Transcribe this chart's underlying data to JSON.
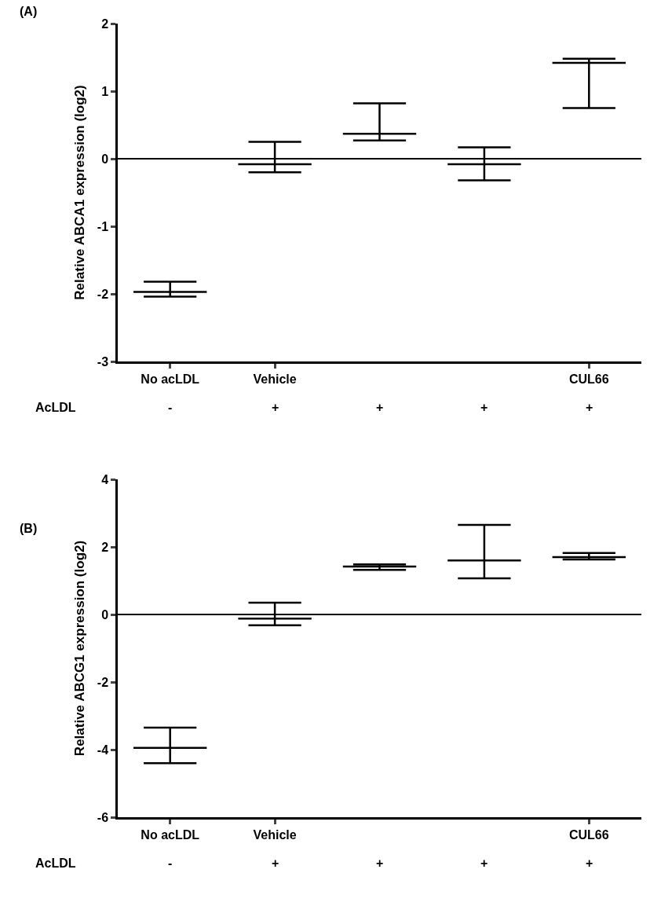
{
  "chart_data": [
    {
      "type": "box",
      "title": "(A)",
      "ylabel": "Relative ABCA1 expression (log2)",
      "categories": [
        "No acLDL",
        "Vehicle",
        null,
        null,
        "CUL66"
      ],
      "series": [
        {
          "color": "#000000",
          "boxes": [
            {
              "low": -2.04,
              "q1": -1.97,
              "median": -1.97,
              "q3": -1.97,
              "high": -1.82
            },
            {
              "low": -0.2,
              "q1": -0.08,
              "median": -0.08,
              "q3": -0.08,
              "high": 0.25
            },
            {
              "low": 0.27,
              "q1": 0.37,
              "median": 0.37,
              "q3": 0.37,
              "high": 0.82
            },
            {
              "low": -0.32,
              "q1": -0.08,
              "median": -0.08,
              "q3": -0.08,
              "high": 0.17
            },
            {
              "low": 0.75,
              "q1": 1.42,
              "median": 1.42,
              "q3": 1.42,
              "high": 1.48
            }
          ]
        }
      ],
      "ylim": [
        -3,
        2
      ],
      "yticks": [
        -3,
        -2,
        -1,
        0,
        1,
        2
      ],
      "ref_lines": [
        {
          "axis": "y",
          "value": 0,
          "color": "#000000"
        }
      ],
      "annotations": [
        "AcLDL",
        "-",
        "+",
        "+",
        "+",
        "+"
      ],
      "grid": false
    },
    {
      "type": "box",
      "title": "(B)",
      "ylabel": "Relative ABCG1 expression (log2)",
      "categories": [
        "No acLDL",
        "Vehicle",
        null,
        null,
        "CUL66"
      ],
      "series": [
        {
          "color": "#000000",
          "boxes": [
            {
              "low": -4.4,
              "q1": -3.95,
              "median": -3.95,
              "q3": -3.95,
              "high": -3.35
            },
            {
              "low": -0.32,
              "q1": -0.12,
              "median": -0.12,
              "q3": -0.12,
              "high": 0.35
            },
            {
              "low": 1.32,
              "q1": 1.42,
              "median": 1.42,
              "q3": 1.42,
              "high": 1.48
            },
            {
              "low": 1.07,
              "q1": 1.6,
              "median": 1.6,
              "q3": 1.6,
              "high": 2.65
            },
            {
              "low": 1.63,
              "q1": 1.7,
              "median": 1.7,
              "q3": 1.7,
              "high": 1.82
            }
          ]
        }
      ],
      "ylim": [
        -6,
        4
      ],
      "yticks": [
        -6,
        -4,
        -2,
        0,
        2,
        4
      ],
      "ref_lines": [
        {
          "axis": "y",
          "value": 0,
          "color": "#000000"
        }
      ],
      "annotations": [
        "AcLDL",
        "-",
        "+",
        "+",
        "+",
        "+"
      ],
      "grid": false
    }
  ]
}
